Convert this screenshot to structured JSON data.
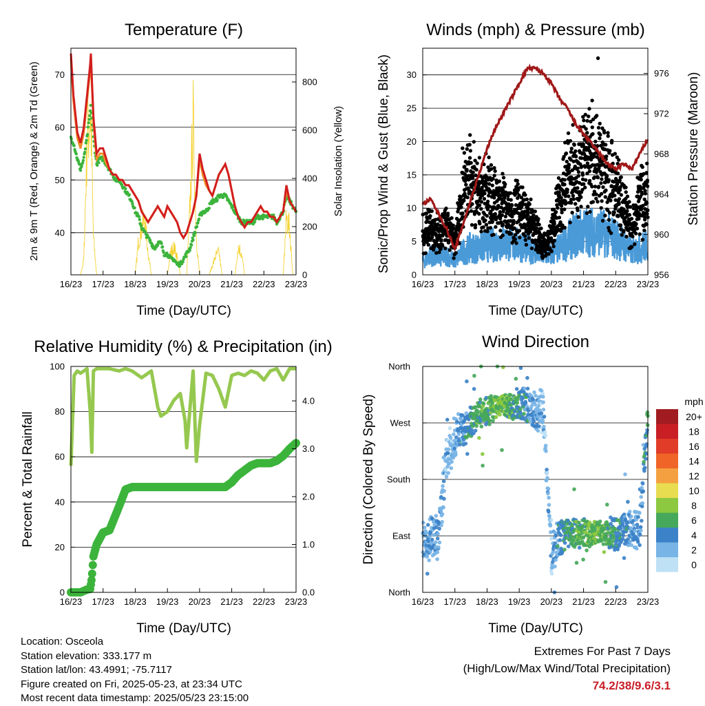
{
  "colors": {
    "temp_red": "#d21e1e",
    "temp_orange": "#f08c28",
    "dewpoint_green": "#3cb43c",
    "solar_yellow": "#f5d232",
    "wind_blue": "#4a9ad8",
    "gust_black": "#000000",
    "pressure_maroon": "#a01818",
    "rh_lightgreen": "#96c850",
    "precip_green": "#3cb43c",
    "extremes_red": "#c81e28"
  },
  "x_ticks": [
    "16/23",
    "17/23",
    "18/23",
    "19/23",
    "20/23",
    "21/23",
    "22/23",
    "23/23"
  ],
  "chart_data": [
    {
      "type": "line",
      "title": "Temperature (F)",
      "xlabel": "Time (Day/UTC)",
      "ylabel": "2m & 9m T (Red, Orange) & 2m Td (Green)",
      "y2label": "Solar Insolation (Yellow)",
      "ylim": [
        32,
        75
      ],
      "y2lim": [
        0,
        940
      ],
      "yticks": [
        "40",
        "50",
        "60",
        "70"
      ],
      "y2ticks": [
        "0",
        "200",
        "400",
        "600",
        "800"
      ],
      "grid": true,
      "x": [
        0,
        0.08,
        0.2,
        0.3,
        0.4,
        0.5,
        0.6,
        0.62,
        0.7,
        0.8,
        0.9,
        1,
        1.1,
        1.2,
        1.3,
        1.4,
        1.5,
        1.6,
        1.7,
        1.8,
        1.9,
        2,
        2.1,
        2.2,
        2.3,
        2.4,
        2.5,
        2.6,
        2.7,
        2.8,
        2.9,
        3,
        3.1,
        3.2,
        3.3,
        3.4,
        3.5,
        3.6,
        3.7,
        3.8,
        3.9,
        4,
        4.1,
        4.2,
        4.3,
        4.4,
        4.5,
        4.6,
        4.7,
        4.8,
        4.9,
        5,
        5.1,
        5.2,
        5.3,
        5.4,
        5.5,
        5.6,
        5.7,
        5.8,
        5.9,
        6,
        6.1,
        6.2,
        6.3,
        6.4,
        6.5,
        6.6,
        6.7,
        6.8,
        6.9,
        7
      ],
      "series": [
        {
          "name": "2m T",
          "values": [
            74,
            66,
            59,
            57,
            60,
            66,
            72,
            74,
            62,
            55,
            56,
            56,
            54,
            52,
            51,
            51,
            50,
            50,
            49,
            49,
            48,
            47,
            46,
            44,
            43,
            42,
            43,
            44,
            45,
            44,
            43,
            45,
            44,
            43,
            42,
            40,
            39,
            40,
            42,
            44,
            47,
            55,
            52,
            50,
            48,
            47,
            49,
            51,
            52,
            53,
            51,
            48,
            45,
            43,
            42,
            41,
            42,
            42,
            43,
            44,
            45,
            44,
            44,
            43,
            43,
            42,
            43,
            44,
            49,
            46,
            45,
            44
          ]
        },
        {
          "name": "9m T",
          "values": [
            73,
            65,
            58,
            56,
            59,
            65,
            71,
            73,
            61,
            54,
            55,
            55,
            53,
            52,
            51,
            51,
            50,
            50,
            49,
            49,
            48,
            47,
            46,
            44,
            43,
            42,
            43,
            44,
            45,
            44,
            43,
            45,
            44,
            43,
            42,
            40,
            39,
            40,
            42,
            44,
            47,
            54,
            51,
            49,
            48,
            47,
            49,
            51,
            52,
            53,
            51,
            48,
            45,
            43,
            42,
            41,
            42,
            42,
            43,
            44,
            45,
            44,
            44,
            43,
            43,
            42,
            43,
            44,
            48,
            46,
            45,
            44
          ]
        },
        {
          "name": "2m Td",
          "values": [
            58,
            57,
            54,
            52,
            54,
            58,
            63,
            64,
            58,
            53,
            54,
            54,
            53,
            52,
            51,
            50,
            50,
            49,
            48,
            47,
            46,
            44,
            43,
            41,
            40,
            39,
            38,
            37,
            38,
            38,
            36,
            36,
            35,
            35,
            34,
            34,
            35,
            36,
            37,
            39,
            41,
            43,
            44,
            44,
            45,
            46,
            46,
            47,
            47,
            47,
            46,
            45,
            44,
            43,
            42,
            42,
            42,
            42,
            42,
            43,
            43,
            43,
            43,
            43,
            43,
            42,
            43,
            44,
            47,
            46,
            45,
            44
          ]
        }
      ],
      "solar_values": [
        0,
        0,
        0,
        0,
        80,
        700,
        850,
        830,
        200,
        0,
        0,
        0,
        0,
        0,
        0,
        0,
        0,
        0,
        0,
        0,
        0,
        0,
        180,
        250,
        300,
        120,
        0,
        0,
        0,
        0,
        0,
        0,
        120,
        150,
        100,
        0,
        0,
        0,
        350,
        830,
        200,
        0,
        0,
        0,
        0,
        50,
        100,
        120,
        0,
        0,
        0,
        0,
        0,
        150,
        120,
        0,
        0,
        0,
        0,
        0,
        0,
        0,
        0,
        0,
        0,
        0,
        0,
        0,
        300,
        250,
        0,
        0
      ]
    },
    {
      "type": "scatter",
      "title": "Winds (mph) & Pressure (mb)",
      "xlabel": "Time (Day/UTC)",
      "ylabel": "Sonic/Prop Wind & Gust (Blue, Black)",
      "y2label": "Station Pressure (Maroon)",
      "ylim": [
        0,
        34
      ],
      "y2lim": [
        956,
        978.5
      ],
      "yticks": [
        "0",
        "5",
        "10",
        "15",
        "20",
        "25",
        "30"
      ],
      "y2ticks": [
        "956",
        "960",
        "964",
        "968",
        "972",
        "976"
      ],
      "grid": true,
      "x": [
        0,
        0.25,
        0.5,
        0.75,
        1,
        1.25,
        1.5,
        1.75,
        2,
        2.25,
        2.5,
        2.75,
        3,
        3.25,
        3.5,
        3.75,
        4,
        4.25,
        4.5,
        4.75,
        5,
        5.25,
        5.5,
        5.75,
        6,
        6.25,
        6.5,
        6.75,
        7
      ],
      "wind_mean": [
        2,
        3,
        2.5,
        3,
        2,
        3.5,
        4,
        4,
        4.5,
        4.5,
        5,
        4.5,
        4.5,
        4,
        3.5,
        3,
        3,
        4,
        5,
        6,
        6.5,
        6.5,
        6.5,
        6,
        5.5,
        4.5,
        3.5,
        4,
        4.5
      ],
      "gust_mean": [
        6,
        7,
        6,
        7,
        5,
        13,
        14,
        12,
        12,
        11,
        11,
        9,
        10,
        8,
        7,
        4,
        6,
        11,
        14,
        16,
        17,
        17,
        17,
        14,
        13,
        10,
        7,
        11,
        12
      ],
      "pressure": [
        963,
        963.5,
        962,
        960.5,
        958.5,
        961,
        963.5,
        966,
        968.5,
        970.5,
        972,
        973.5,
        975,
        976.5,
        976.5,
        976,
        975,
        973.5,
        972.5,
        971,
        970,
        969,
        968,
        967,
        966.5,
        967,
        966.5,
        968,
        969.5
      ],
      "max_gust_point": 32.5
    },
    {
      "type": "line",
      "title": "Relative Humidity (%) & Precipitation (in)",
      "xlabel": "Time (Day/UTC)",
      "ylabel": "Percent & Total Rainfall",
      "ylim": [
        0,
        100
      ],
      "y2lim": [
        0,
        4.72
      ],
      "yticks": [
        "0",
        "20",
        "40",
        "60",
        "80",
        "100"
      ],
      "y2ticks": [
        "0.0",
        "1.0",
        "2.0",
        "3.0",
        "4.0"
      ],
      "grid": true,
      "x": [
        0,
        0.1,
        0.2,
        0.3,
        0.5,
        0.6,
        0.65,
        0.7,
        0.8,
        1,
        1.2,
        1.5,
        1.7,
        1.9,
        2.2,
        2.5,
        2.7,
        2.8,
        3,
        3.2,
        3.4,
        3.55,
        3.6,
        3.8,
        3.9,
        4,
        4.2,
        4.4,
        4.6,
        4.8,
        5,
        5.2,
        5.4,
        5.6,
        5.8,
        6,
        6.2,
        6.4,
        6.6,
        6.8,
        7
      ],
      "series": [
        {
          "name": "RH",
          "values": [
            56,
            96,
            98,
            97,
            99,
            80,
            62,
            98,
            99,
            99,
            99,
            98,
            99,
            98,
            95,
            98,
            82,
            78,
            80,
            85,
            88,
            76,
            64,
            98,
            58,
            74,
            97,
            96,
            90,
            82,
            96,
            97,
            96,
            98,
            97,
            94,
            98,
            99,
            94,
            99,
            99
          ]
        },
        {
          "name": "Total Rainfall",
          "values": [
            0,
            0,
            0,
            0,
            0.06,
            0.07,
            0.3,
            0.75,
            1.0,
            1.25,
            1.3,
            1.8,
            2.15,
            2.2,
            2.2,
            2.2,
            2.2,
            2.2,
            2.2,
            2.2,
            2.2,
            2.2,
            2.2,
            2.2,
            2.2,
            2.2,
            2.2,
            2.2,
            2.2,
            2.2,
            2.3,
            2.45,
            2.55,
            2.65,
            2.7,
            2.7,
            2.7,
            2.75,
            2.85,
            3.0,
            3.12
          ]
        }
      ]
    },
    {
      "type": "scatter",
      "title": "Wind Direction",
      "xlabel": "Time (Day/UTC)",
      "ylabel": "Direction (Colored By Speed)",
      "yticks": [
        "North",
        "East",
        "South",
        "West",
        "North"
      ],
      "colorbar_title": "mph",
      "colorbar_labels": [
        "20+",
        "18",
        "16",
        "14",
        "12",
        "10",
        "8",
        "6",
        "4",
        "2",
        "0"
      ],
      "colorbar_colors": [
        "#a01c20",
        "#c81e24",
        "#e03c28",
        "#f06428",
        "#f5a040",
        "#e8dc50",
        "#8cc840",
        "#46a85a",
        "#3c82c8",
        "#78b4e6",
        "#bee1f5"
      ],
      "x": [
        0,
        0.25,
        0.5,
        0.75,
        1,
        1.25,
        1.5,
        1.75,
        2,
        2.25,
        2.5,
        2.75,
        3,
        3.25,
        3.5,
        3.75,
        4,
        4.25,
        4.5,
        4.75,
        5,
        5.25,
        5.5,
        5.75,
        6,
        6.25,
        6.5,
        6.75,
        7
      ],
      "direction_deg": [
        80,
        90,
        95,
        210,
        250,
        260,
        270,
        285,
        290,
        295,
        300,
        295,
        300,
        295,
        290,
        290,
        60,
        85,
        95,
        95,
        95,
        95,
        95,
        95,
        95,
        95,
        100,
        100,
        280
      ],
      "speed": [
        2,
        3,
        3,
        2,
        2,
        4,
        5,
        6,
        6,
        7,
        7,
        6,
        5,
        4,
        3,
        2,
        2,
        4,
        5,
        6,
        6,
        7,
        7,
        6,
        5,
        4,
        3,
        3,
        5
      ]
    }
  ],
  "info": {
    "location": "Location: Osceola",
    "elevation": "Station elevation: 333.177 m",
    "latlon": "Station lat/lon: 43.4991; -75.7117",
    "created": "Figure created on Fri, 2025-05-23, at 23:34 UTC",
    "timestamp": "Most recent data timestamp: 2025/05/23 23:15:00"
  },
  "extremes": {
    "heading": "Extremes For Past 7 Days",
    "subheading": "(High/Low/Max Wind/Total Precipitation)",
    "values": "74.2/38/9.6/3.1"
  }
}
